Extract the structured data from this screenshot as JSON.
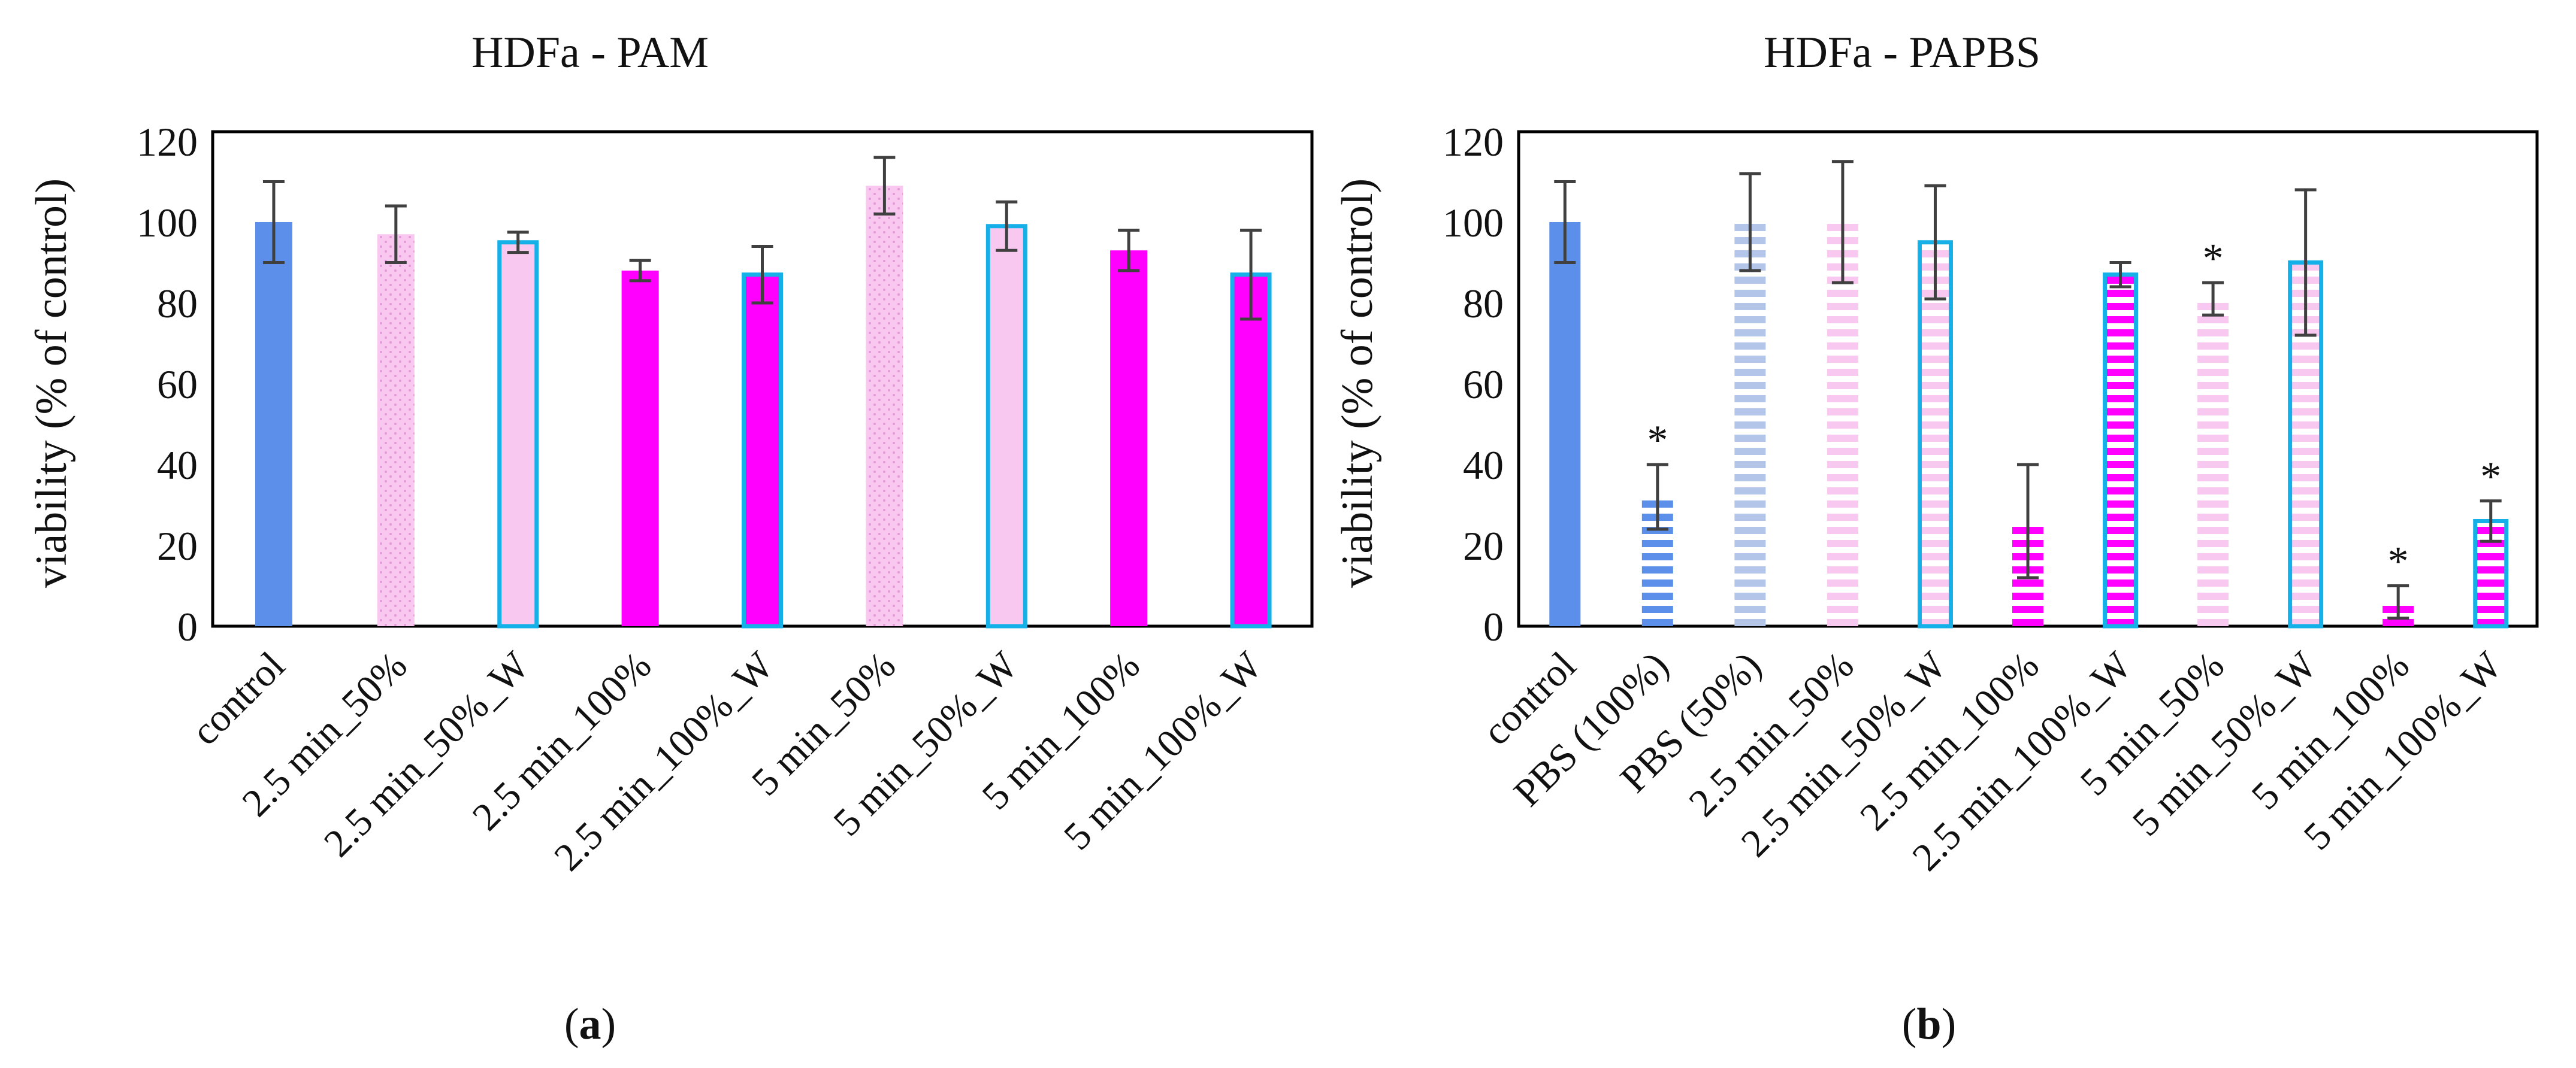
{
  "chart_data": [
    {
      "type": "bar",
      "title": "HDFa - PAM",
      "ylabel": "viability (% of control)",
      "xlabel": "",
      "ylim": [
        0,
        120
      ],
      "yticks": [
        "0",
        "20",
        "40",
        "60",
        "80",
        "100",
        "120"
      ],
      "grid": false,
      "legend": "none",
      "caption": {
        "open": "(",
        "letter": "a",
        "close": ")"
      },
      "categories": [
        "control",
        "2.5 min_50%",
        "2.5 min_50%_W",
        "2.5 min_100%",
        "2.5 min_100%_W",
        "5 min_50%",
        "5 min_50%_W",
        "5 min_100%",
        "5 min_100%_W"
      ],
      "values": [
        100,
        97,
        95,
        88,
        87,
        109,
        99,
        93,
        87
      ],
      "errors": [
        10,
        7,
        2.5,
        2.5,
        7,
        7,
        6,
        5,
        11
      ],
      "significant": [
        false,
        false,
        false,
        false,
        false,
        false,
        false,
        false,
        false
      ],
      "styles": [
        "solid-blue",
        "dots-pink",
        "outline-blue",
        "solid-magenta",
        "outline-magenta",
        "dots-pink",
        "outline-blue",
        "solid-magenta",
        "outline-magenta"
      ]
    },
    {
      "type": "bar",
      "title": "HDFa - PAPBS",
      "ylabel": "viability (% of control)",
      "xlabel": "",
      "ylim": [
        0,
        120
      ],
      "yticks": [
        "0",
        "20",
        "40",
        "60",
        "80",
        "100",
        "120"
      ],
      "grid": false,
      "legend": "none",
      "caption": {
        "open": "(",
        "letter": "b",
        "close": ")"
      },
      "categories": [
        "control",
        "PBS (100%)",
        "PBS (50%)",
        "2.5 min_50%",
        "2.5 min_50%_W",
        "2.5 min_100%",
        "2.5 min_100%_W",
        "5 min_50%",
        "5 min_50%_W",
        "5 min_100%",
        "5 min_100%_W"
      ],
      "values": [
        100,
        32,
        100,
        100,
        95,
        26,
        87,
        81,
        90,
        6,
        26
      ],
      "errors": [
        10,
        8,
        12,
        15,
        14,
        14,
        3,
        4,
        18,
        4,
        5
      ],
      "significant": [
        false,
        true,
        false,
        false,
        false,
        false,
        false,
        true,
        false,
        true,
        true
      ],
      "significance_marker": "*",
      "styles": [
        "solid-blue",
        "stripes-blue",
        "stripes-lightblue",
        "stripes-pink",
        "outline-stripes-pink",
        "stripes-magenta",
        "outline-stripes-magenta",
        "stripes-pink",
        "outline-stripes-pink",
        "stripes-magenta",
        "outline-stripes-magenta"
      ]
    }
  ],
  "colors": {
    "blue": "#5b8fe9",
    "pink": "#f8c8f0",
    "magenta": "#ff00ff",
    "cyan_outline": "#16b0e8",
    "lightblue_stripe": "#b3c6ea",
    "error_bar": "#404040",
    "axis": "#000000"
  }
}
